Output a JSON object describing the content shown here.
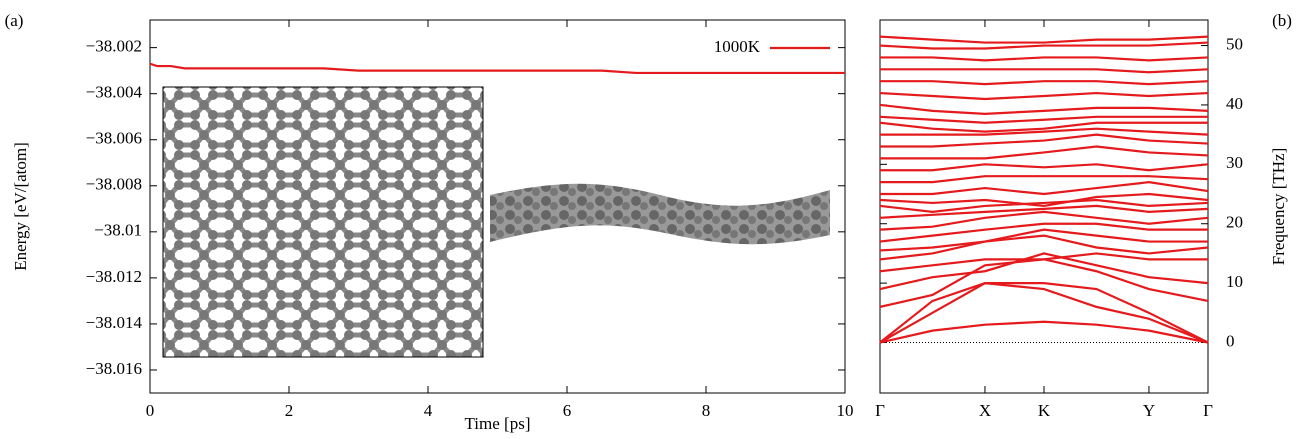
{
  "chart_data": [
    {
      "type": "line",
      "panel_label": "(a)",
      "xlabel": "Time [ps]",
      "ylabel": "Energy [eV/[atom]",
      "xlim": [
        0,
        10
      ],
      "xticks": [
        0,
        2,
        4,
        6,
        8,
        10
      ],
      "ylim": [
        -38.017,
        -38.0008
      ],
      "yticks": [
        {
          "value": -38.002,
          "label": "−38.002"
        },
        {
          "value": -38.004,
          "label": "−38.004"
        },
        {
          "value": -38.006,
          "label": "−38.006"
        },
        {
          "value": -38.008,
          "label": "−38.008"
        },
        {
          "value": -38.01,
          "label": "−38.01"
        },
        {
          "value": -38.012,
          "label": "−38.012"
        },
        {
          "value": -38.014,
          "label": "−38.014"
        },
        {
          "value": -38.016,
          "label": "−38.016"
        }
      ],
      "legend": "upper right",
      "x": [
        0,
        0.1,
        0.3,
        0.5,
        1,
        1.5,
        2,
        2.5,
        3,
        3.5,
        4,
        4.5,
        5,
        5.5,
        6,
        6.5,
        7,
        7.5,
        8,
        8.5,
        9,
        9.5,
        10
      ],
      "series": [
        {
          "name": "1000K",
          "color": "#e41a1c",
          "values": [
            -38.0027,
            -38.0028,
            -38.0028,
            -38.0029,
            -38.0029,
            -38.0029,
            -38.0029,
            -38.0029,
            -38.003,
            -38.003,
            -38.003,
            -38.003,
            -38.003,
            -38.003,
            -38.003,
            -38.003,
            -38.0031,
            -38.0031,
            -38.0031,
            -38.0031,
            -38.0031,
            -38.0031,
            -38.0031
          ]
        }
      ]
    },
    {
      "type": "line",
      "panel_label": "(b)",
      "ylabel": "Frequency [THz]",
      "color": "#e41a1c",
      "xlim": [
        0,
        1
      ],
      "xticks": [
        {
          "value": 0,
          "label": "Γ"
        },
        {
          "value": 0.32,
          "label": "X"
        },
        {
          "value": 0.5,
          "label": "K"
        },
        {
          "value": 0.82,
          "label": "Y"
        },
        {
          "value": 1,
          "label": "Γ"
        }
      ],
      "ylim": [
        -8.5,
        54.3
      ],
      "yticks": [
        0,
        10,
        20,
        30,
        40,
        50
      ],
      "zero_line": 0,
      "x": [
        0,
        0.16,
        0.32,
        0.5,
        0.66,
        0.82,
        1
      ],
      "series": [
        {
          "values": [
            0,
            2,
            3,
            3.5,
            3,
            2,
            0
          ]
        },
        {
          "values": [
            0,
            5,
            10,
            9,
            6,
            4,
            0
          ]
        },
        {
          "values": [
            0,
            7,
            10,
            10,
            9,
            5,
            0
          ]
        },
        {
          "values": [
            6,
            8,
            13,
            14,
            12,
            9,
            7
          ]
        },
        {
          "values": [
            9,
            11,
            12,
            15,
            13,
            11,
            10
          ]
        },
        {
          "values": [
            12,
            13,
            14,
            14,
            15,
            14,
            14
          ]
        },
        {
          "values": [
            14,
            15,
            17,
            18,
            16,
            15,
            16
          ]
        },
        {
          "values": [
            15.5,
            16,
            17,
            19,
            18,
            17,
            17
          ]
        },
        {
          "values": [
            17,
            18,
            19,
            20,
            20,
            19,
            19
          ]
        },
        {
          "values": [
            19,
            19.5,
            21,
            22,
            21,
            20,
            21
          ]
        },
        {
          "values": [
            21,
            21.5,
            22,
            22.5,
            23,
            22,
            22.5
          ]
        },
        {
          "values": [
            23,
            22,
            23,
            23.5,
            24,
            23,
            23.5
          ]
        },
        {
          "values": [
            24,
            23.5,
            24,
            23,
            24.5,
            25,
            24
          ]
        },
        {
          "values": [
            25,
            25,
            26,
            25,
            26,
            27,
            25.5
          ]
        },
        {
          "values": [
            27,
            27,
            28,
            28,
            28,
            28,
            27.5
          ]
        },
        {
          "values": [
            29,
            29,
            30,
            29.5,
            30,
            29,
            30
          ]
        },
        {
          "values": [
            31,
            31,
            31,
            32,
            33,
            32,
            31.5
          ]
        },
        {
          "values": [
            33,
            33,
            33.5,
            34,
            35,
            34,
            33.5
          ]
        },
        {
          "values": [
            35,
            35,
            35,
            35.5,
            36,
            35.5,
            35
          ]
        },
        {
          "values": [
            37,
            36,
            35.5,
            36,
            37,
            37,
            37
          ]
        },
        {
          "values": [
            38,
            37.5,
            37,
            37.5,
            38,
            38,
            38
          ]
        },
        {
          "values": [
            40,
            39,
            38.5,
            39,
            39.5,
            39.5,
            39
          ]
        },
        {
          "values": [
            42,
            41.5,
            41,
            41.5,
            42,
            41.5,
            42
          ]
        },
        {
          "values": [
            44,
            44,
            43.5,
            44,
            44,
            43.5,
            44
          ]
        },
        {
          "values": [
            46,
            46,
            46,
            46,
            46,
            45.5,
            46
          ]
        },
        {
          "values": [
            48,
            48,
            47.5,
            48,
            48,
            47.5,
            48
          ]
        },
        {
          "values": [
            50,
            49.5,
            49.5,
            50,
            50,
            50,
            50.5
          ]
        },
        {
          "values": [
            51.5,
            51,
            50.5,
            50.5,
            51,
            51,
            51.5
          ]
        }
      ]
    }
  ]
}
